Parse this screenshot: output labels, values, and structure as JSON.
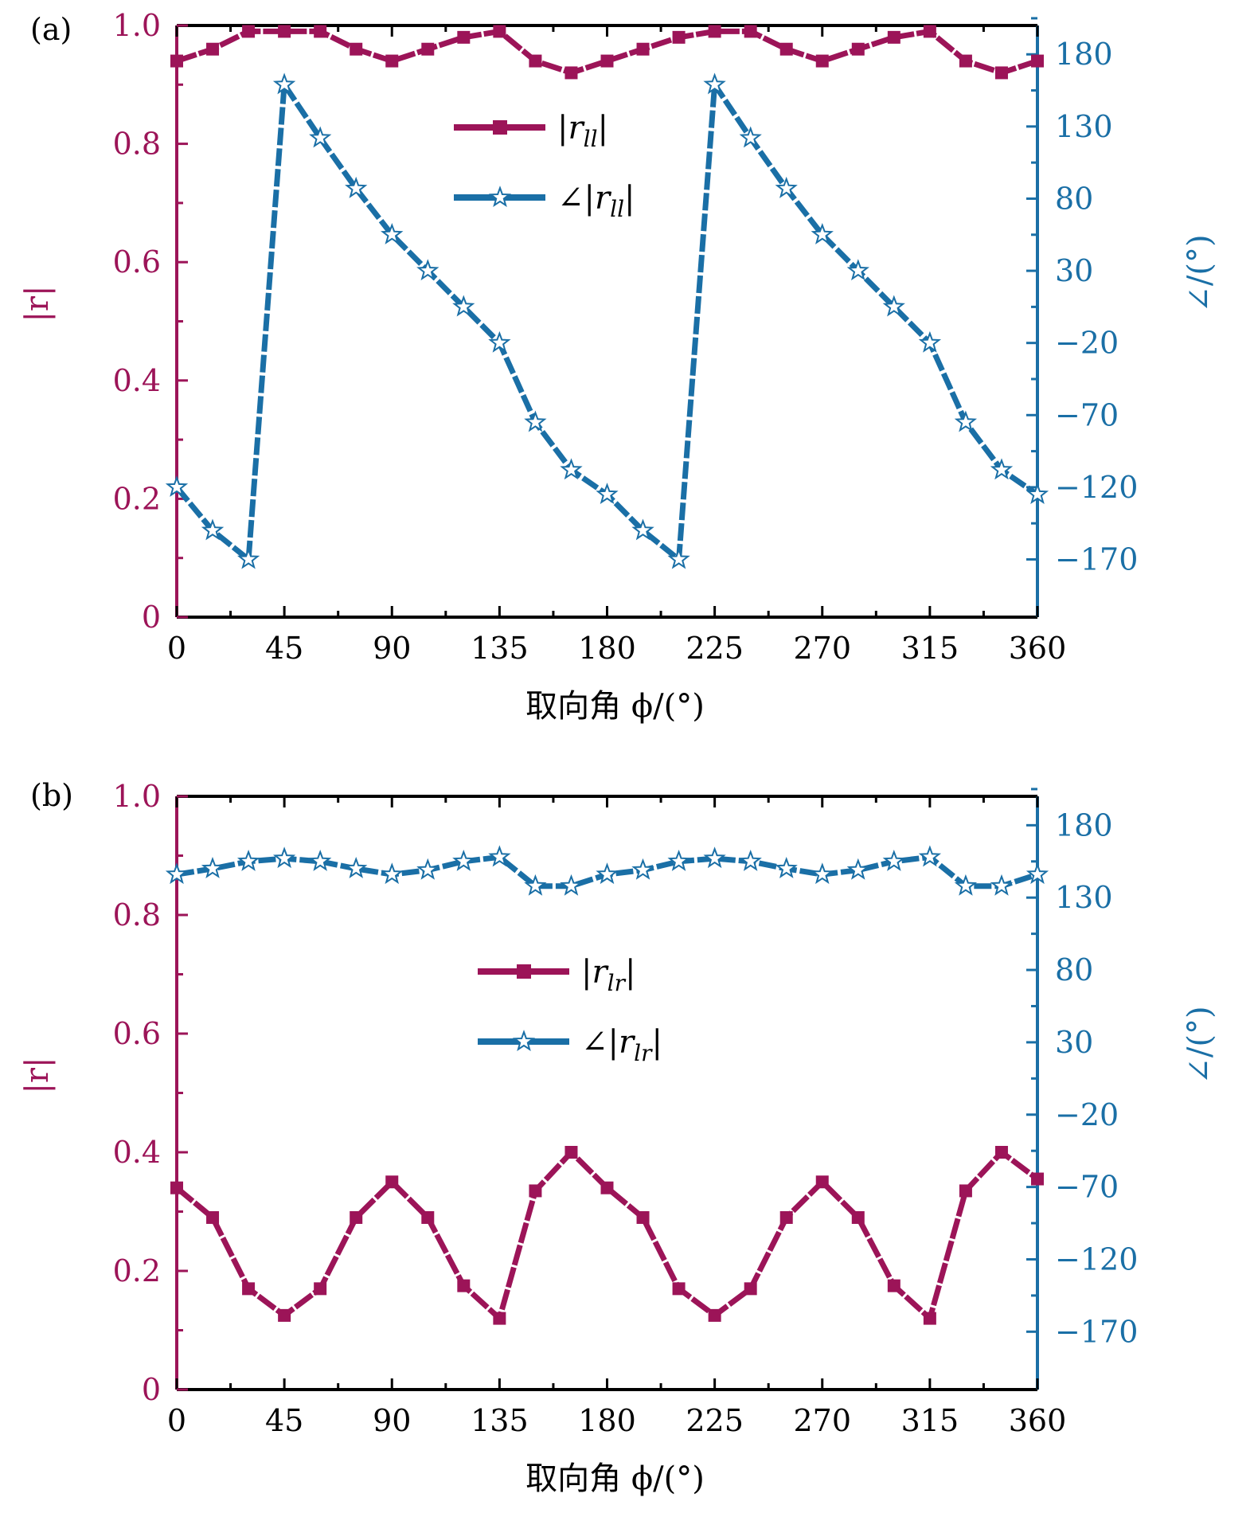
{
  "colors": {
    "magnitude": "#9c1458",
    "phase": "#1a6fa6",
    "frame": "#000000"
  },
  "chart_data": [
    {
      "type": "line",
      "panel_label": "(a)",
      "xlabel": "取向角 ϕ/(°)",
      "ylabel_left": "|r|",
      "ylabel_right": "∠/(°)",
      "xlim": [
        0,
        360
      ],
      "ylim_left": [
        0,
        1.0
      ],
      "ylim_right": [
        -210,
        200
      ],
      "x_ticks": [
        "0",
        "45",
        "90",
        "135",
        "180",
        "225",
        "270",
        "315",
        "360"
      ],
      "y_left_ticks": [
        "0",
        "0.2",
        "0.4",
        "0.6",
        "0.8",
        "1.0"
      ],
      "y_right_ticks": [
        "180",
        "130",
        "80",
        "30",
        "−20",
        "−70",
        "−120",
        "−170"
      ],
      "x": [
        0,
        15,
        30,
        45,
        60,
        75,
        90,
        105,
        120,
        135,
        150,
        165,
        180,
        195,
        210,
        225,
        240,
        255,
        270,
        285,
        300,
        315,
        330,
        345,
        360
      ],
      "series": [
        {
          "name": "|r_ll|",
          "legend": "|r",
          "legend_sub": "ll",
          "legend_post": "|",
          "axis": "left",
          "marker": "square",
          "values": [
            0.94,
            0.96,
            0.99,
            0.99,
            0.99,
            0.96,
            0.94,
            0.96,
            0.98,
            0.99,
            0.94,
            0.92,
            0.94,
            0.96,
            0.98,
            0.99,
            0.99,
            0.96,
            0.94,
            0.96,
            0.98,
            0.99,
            0.94,
            0.92,
            0.94
          ]
        },
        {
          "name": "∠|r_ll|",
          "legend": "∠|r",
          "legend_sub": "ll",
          "legend_post": "|",
          "axis": "right",
          "marker": "star",
          "values": [
            -120,
            -150,
            -170,
            159,
            122,
            87,
            55,
            30,
            5,
            -20,
            -75,
            -108,
            -125,
            -150,
            -170,
            159,
            122,
            87,
            55,
            30,
            5,
            -20,
            -75,
            -108,
            -125
          ]
        }
      ]
    },
    {
      "type": "line",
      "panel_label": "(b)",
      "xlabel": "取向角 ϕ/(°)",
      "ylabel_left": "|r|",
      "ylabel_right": "∠/(°)",
      "xlim": [
        0,
        360
      ],
      "ylim_left": [
        0,
        1.0
      ],
      "ylim_right": [
        -210,
        200
      ],
      "x_ticks": [
        "0",
        "45",
        "90",
        "135",
        "180",
        "225",
        "270",
        "315",
        "360"
      ],
      "y_left_ticks": [
        "0",
        "0.2",
        "0.4",
        "0.6",
        "0.8",
        "1.0"
      ],
      "y_right_ticks": [
        "180",
        "130",
        "80",
        "30",
        "−20",
        "−70",
        "−120",
        "−170"
      ],
      "x": [
        0,
        15,
        30,
        45,
        60,
        75,
        90,
        105,
        120,
        135,
        150,
        165,
        180,
        195,
        210,
        225,
        240,
        255,
        270,
        285,
        300,
        315,
        330,
        345,
        360
      ],
      "series": [
        {
          "name": "|r_lr|",
          "legend": "|r",
          "legend_sub": "lr",
          "legend_post": "|",
          "axis": "left",
          "marker": "square",
          "values": [
            0.34,
            0.29,
            0.17,
            0.125,
            0.17,
            0.29,
            0.35,
            0.29,
            0.175,
            0.12,
            0.335,
            0.4,
            0.34,
            0.29,
            0.17,
            0.125,
            0.17,
            0.29,
            0.35,
            0.29,
            0.175,
            0.12,
            0.335,
            0.4,
            0.355
          ]
        },
        {
          "name": "∠|r_lr|",
          "legend": "∠|r",
          "legend_sub": "lr",
          "legend_post": "|",
          "axis": "right",
          "marker": "star",
          "values": [
            146,
            150,
            155,
            157,
            155,
            150,
            146,
            149,
            155,
            158,
            138,
            138,
            146,
            149,
            155,
            157,
            155,
            150,
            146,
            149,
            155,
            158,
            138,
            138,
            146
          ]
        }
      ]
    }
  ]
}
